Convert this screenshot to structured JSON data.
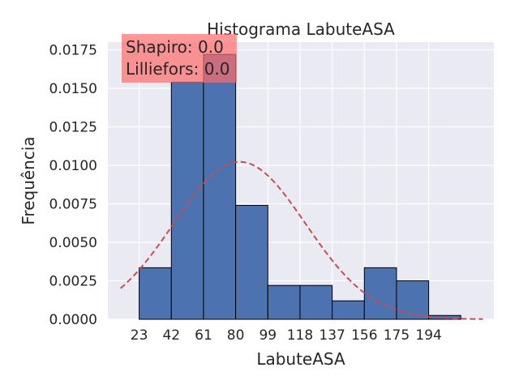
{
  "chart_data": {
    "type": "bar",
    "title": "Histograma LabuteASA",
    "xlabel": "LabuteASA",
    "ylabel": "Frequência",
    "xlim": [
      4.5,
      232.5
    ],
    "ylim": [
      0,
      0.018
    ],
    "grid": true,
    "bins": [
      {
        "start": 23,
        "end": 42,
        "value": 0.00335
      },
      {
        "start": 42,
        "end": 61,
        "value": 0.0154
      },
      {
        "start": 61,
        "end": 80,
        "value": 0.0172
      },
      {
        "start": 80,
        "end": 99,
        "value": 0.0074
      },
      {
        "start": 99,
        "end": 118,
        "value": 0.0022
      },
      {
        "start": 118,
        "end": 137,
        "value": 0.0022
      },
      {
        "start": 137,
        "end": 156,
        "value": 0.0012
      },
      {
        "start": 156,
        "end": 175,
        "value": 0.00335
      },
      {
        "start": 175,
        "end": 194,
        "value": 0.0025
      },
      {
        "start": 194,
        "end": 213,
        "value": 0.00025
      }
    ],
    "x_ticks": [
      23,
      42,
      61,
      80,
      99,
      118,
      137,
      156,
      175,
      194
    ],
    "x_tick_labels": [
      "23",
      "42",
      "61",
      "80",
      "99",
      "118",
      "137",
      "156",
      "175",
      "194"
    ],
    "y_ticks": [
      0,
      0.0025,
      0.005,
      0.0075,
      0.01,
      0.0125,
      0.015,
      0.0175
    ],
    "y_tick_labels": [
      "0.0000",
      "0.0025",
      "0.0050",
      "0.0075",
      "0.0100",
      "0.0125",
      "0.0150",
      "0.0175"
    ],
    "normal_fit": {
      "mean": 82.3,
      "std": 39.0,
      "x_start": 12,
      "x_end": 226,
      "style": "dashed",
      "color": "#c44e52"
    },
    "annotation": {
      "lines": [
        "Shapiro: 0.0",
        "Lilliefors: 0.0"
      ],
      "box_color": "#ff6b6b"
    },
    "colors": {
      "bar_fill": "#4c72b0",
      "bar_edge": "#000000",
      "plot_bg": "#eaeaf2",
      "grid": "#ffffff"
    }
  }
}
